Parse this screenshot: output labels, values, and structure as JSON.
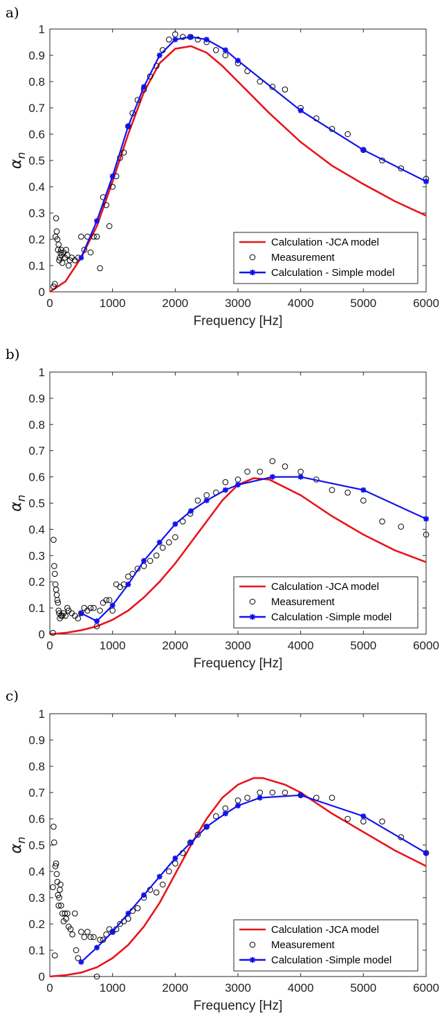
{
  "colors": {
    "jca": "#e8131b",
    "simple": "#1111ee",
    "measurement": "#000000",
    "axis": "#262626"
  },
  "chart_data": [
    {
      "label": "a)",
      "type": "line",
      "xlabel": "Frequency [Hz]",
      "ylabel_symbol": "α",
      "ylabel_sub": "n",
      "xlim": [
        0,
        6000
      ],
      "ylim": [
        0,
        1
      ],
      "xticks": [
        "0",
        "1000",
        "2000",
        "3000",
        "4000",
        "5000",
        "6000"
      ],
      "yticks": [
        "0",
        "0.1",
        "0.2",
        "0.3",
        "0.4",
        "0.5",
        "0.6",
        "0.7",
        "0.8",
        "0.9",
        "1"
      ],
      "legend_position": "bottom-right",
      "series": [
        {
          "name": "Calculation -JCA model",
          "kind": "line",
          "color": "#e8131b",
          "x": [
            0,
            250,
            500,
            750,
            1000,
            1250,
            1500,
            1750,
            2000,
            2250,
            2500,
            2750,
            3000,
            3500,
            4000,
            4500,
            5000,
            5500,
            6000
          ],
          "y": [
            0,
            0.04,
            0.13,
            0.25,
            0.42,
            0.6,
            0.76,
            0.87,
            0.925,
            0.935,
            0.91,
            0.86,
            0.8,
            0.68,
            0.57,
            0.48,
            0.41,
            0.345,
            0.29
          ]
        },
        {
          "name": "Measurement",
          "kind": "scatter",
          "color": "#000000",
          "x": [
            60,
            80,
            90,
            100,
            110,
            120,
            130,
            140,
            150,
            160,
            170,
            180,
            190,
            200,
            220,
            240,
            260,
            280,
            300,
            320,
            350,
            400,
            450,
            500,
            550,
            600,
            650,
            700,
            750,
            800,
            850,
            900,
            950,
            1000,
            1060,
            1120,
            1180,
            1250,
            1320,
            1400,
            1500,
            1600,
            1700,
            1800,
            1900,
            2000,
            2120,
            2240,
            2360,
            2500,
            2650,
            2800,
            3000,
            3150,
            3350,
            3550,
            3750,
            4000,
            4250,
            4500,
            4750,
            5000,
            5300,
            5600,
            6000
          ],
          "y": [
            0.02,
            0.03,
            0.21,
            0.28,
            0.23,
            0.2,
            0.16,
            0.18,
            0.12,
            0.13,
            0.15,
            0.16,
            0.14,
            0.11,
            0.15,
            0.13,
            0.16,
            0.14,
            0.1,
            0.12,
            0.13,
            0.12,
            0.13,
            0.21,
            0.16,
            0.21,
            0.15,
            0.21,
            0.21,
            0.09,
            0.36,
            0.33,
            0.25,
            0.4,
            0.44,
            0.51,
            0.53,
            0.63,
            0.68,
            0.73,
            0.77,
            0.82,
            0.86,
            0.92,
            0.96,
            0.98,
            0.97,
            0.97,
            0.96,
            0.95,
            0.92,
            0.9,
            0.87,
            0.84,
            0.8,
            0.78,
            0.77,
            0.7,
            0.66,
            0.62,
            0.6,
            0.54,
            0.5,
            0.47,
            0.43
          ]
        },
        {
          "name": "Calculation - Simple model",
          "kind": "line-marker",
          "color": "#1111ee",
          "x": [
            500,
            750,
            1000,
            1250,
            1500,
            1750,
            2000,
            2250,
            2500,
            2800,
            3000,
            4000,
            5000,
            6000
          ],
          "y": [
            0.13,
            0.27,
            0.44,
            0.63,
            0.78,
            0.9,
            0.96,
            0.97,
            0.96,
            0.92,
            0.88,
            0.69,
            0.54,
            0.42
          ]
        }
      ]
    },
    {
      "label": "b)",
      "type": "line",
      "xlabel": "Frequency [Hz]",
      "ylabel_symbol": "α",
      "ylabel_sub": "n",
      "xlim": [
        0,
        6000
      ],
      "ylim": [
        0,
        1
      ],
      "xticks": [
        "0",
        "1000",
        "2000",
        "3000",
        "4000",
        "5000",
        "6000"
      ],
      "yticks": [
        "0",
        "0.1",
        "0.2",
        "0.3",
        "0.4",
        "0.5",
        "0.6",
        "0.7",
        "0.8",
        "0.9",
        "1"
      ],
      "legend_position": "bottom-right",
      "series": [
        {
          "name": "Calculation -JCA model",
          "kind": "line",
          "color": "#e8131b",
          "x": [
            0,
            250,
            500,
            750,
            1000,
            1250,
            1500,
            1750,
            2000,
            2250,
            2500,
            2750,
            3000,
            3250,
            3500,
            4000,
            4500,
            5000,
            5500,
            6000
          ],
          "y": [
            0,
            0.005,
            0.015,
            0.03,
            0.055,
            0.09,
            0.14,
            0.2,
            0.27,
            0.35,
            0.43,
            0.51,
            0.57,
            0.595,
            0.59,
            0.53,
            0.45,
            0.38,
            0.32,
            0.275
          ]
        },
        {
          "name": "Measurement",
          "kind": "scatter",
          "color": "#000000",
          "x": [
            50,
            60,
            70,
            80,
            90,
            100,
            110,
            120,
            130,
            140,
            150,
            160,
            180,
            200,
            220,
            250,
            280,
            300,
            350,
            400,
            450,
            500,
            550,
            600,
            650,
            700,
            750,
            800,
            850,
            900,
            950,
            1000,
            1060,
            1120,
            1180,
            1250,
            1320,
            1400,
            1500,
            1600,
            1700,
            1800,
            1900,
            2000,
            2120,
            2240,
            2360,
            2500,
            2650,
            2800,
            3000,
            3150,
            3350,
            3550,
            3750,
            4000,
            4250,
            4500,
            4750,
            5000,
            5300,
            5600,
            6000
          ],
          "y": [
            0.005,
            0.36,
            0.26,
            0.23,
            0.19,
            0.17,
            0.15,
            0.13,
            0.12,
            0.09,
            0.08,
            0.06,
            0.07,
            0.07,
            0.08,
            0.07,
            0.1,
            0.09,
            0.08,
            0.07,
            0.06,
            0.08,
            0.1,
            0.09,
            0.1,
            0.1,
            0.03,
            0.09,
            0.12,
            0.13,
            0.13,
            0.09,
            0.19,
            0.18,
            0.19,
            0.22,
            0.23,
            0.25,
            0.26,
            0.28,
            0.3,
            0.33,
            0.35,
            0.37,
            0.43,
            0.46,
            0.51,
            0.53,
            0.54,
            0.58,
            0.59,
            0.62,
            0.62,
            0.66,
            0.64,
            0.62,
            0.59,
            0.55,
            0.54,
            0.51,
            0.43,
            0.41,
            0.38
          ]
        },
        {
          "name": "Calculation -Simple model",
          "kind": "line-marker",
          "color": "#1111ee",
          "x": [
            500,
            750,
            1000,
            1250,
            1500,
            1750,
            2000,
            2250,
            2500,
            2800,
            3000,
            3550,
            4000,
            5000,
            6000
          ],
          "y": [
            0.08,
            0.05,
            0.11,
            0.19,
            0.28,
            0.35,
            0.42,
            0.47,
            0.51,
            0.55,
            0.57,
            0.6,
            0.6,
            0.55,
            0.44
          ]
        }
      ]
    },
    {
      "label": "c)",
      "type": "line",
      "xlabel": "Frequency [Hz]",
      "ylabel_symbol": "α",
      "ylabel_sub": "n",
      "xlim": [
        0,
        6000
      ],
      "ylim": [
        0,
        1
      ],
      "xticks": [
        "0",
        "1000",
        "2000",
        "3000",
        "4000",
        "5000",
        "6000"
      ],
      "yticks": [
        "0",
        "0.1",
        "0.2",
        "0.3",
        "0.4",
        "0.5",
        "0.6",
        "0.7",
        "0.8",
        "0.9",
        "1"
      ],
      "legend_position": "bottom-right",
      "series": [
        {
          "name": "Calculation -JCA model",
          "kind": "line",
          "color": "#e8131b",
          "x": [
            0,
            250,
            500,
            750,
            1000,
            1250,
            1500,
            1750,
            2000,
            2250,
            2500,
            2750,
            3000,
            3250,
            3400,
            3750,
            4000,
            4500,
            5000,
            5500,
            6000
          ],
          "y": [
            0,
            0.005,
            0.015,
            0.035,
            0.07,
            0.12,
            0.19,
            0.28,
            0.39,
            0.5,
            0.6,
            0.68,
            0.73,
            0.755,
            0.755,
            0.73,
            0.7,
            0.62,
            0.55,
            0.48,
            0.42
          ]
        },
        {
          "name": "Measurement",
          "kind": "scatter",
          "color": "#000000",
          "x": [
            50,
            60,
            70,
            80,
            90,
            100,
            110,
            120,
            130,
            140,
            150,
            160,
            170,
            180,
            200,
            220,
            240,
            260,
            280,
            300,
            330,
            360,
            400,
            420,
            450,
            500,
            550,
            600,
            650,
            700,
            750,
            800,
            850,
            900,
            950,
            1000,
            1060,
            1120,
            1180,
            1250,
            1320,
            1400,
            1500,
            1600,
            1700,
            1800,
            1900,
            2000,
            2120,
            2240,
            2360,
            2500,
            2650,
            2800,
            3000,
            3150,
            3350,
            3550,
            3750,
            4000,
            4250,
            4500,
            4750,
            5000,
            5300,
            5600,
            6000
          ],
          "y": [
            0.34,
            0.57,
            0.51,
            0.08,
            0.42,
            0.43,
            0.39,
            0.36,
            0.31,
            0.27,
            0.3,
            0.33,
            0.35,
            0.27,
            0.24,
            0.21,
            0.24,
            0.22,
            0.24,
            0.19,
            0.18,
            0.16,
            0.24,
            0.1,
            0.07,
            0.17,
            0.15,
            0.17,
            0.15,
            0.15,
            0.0,
            0.14,
            0.14,
            0.16,
            0.18,
            0.17,
            0.18,
            0.2,
            0.21,
            0.22,
            0.25,
            0.26,
            0.3,
            0.33,
            0.32,
            0.35,
            0.4,
            0.43,
            0.47,
            0.51,
            0.54,
            0.57,
            0.61,
            0.64,
            0.67,
            0.68,
            0.7,
            0.7,
            0.7,
            0.69,
            0.68,
            0.68,
            0.6,
            0.59,
            0.59,
            0.53,
            0.47
          ]
        },
        {
          "name": "Calculation -Simple model",
          "kind": "line-marker",
          "color": "#1111ee",
          "x": [
            500,
            750,
            1000,
            1250,
            1500,
            1750,
            2000,
            2250,
            2500,
            2800,
            3000,
            3350,
            4000,
            5000,
            6000
          ],
          "y": [
            0.055,
            0.11,
            0.17,
            0.24,
            0.31,
            0.38,
            0.45,
            0.51,
            0.57,
            0.62,
            0.65,
            0.68,
            0.69,
            0.61,
            0.47
          ]
        }
      ]
    }
  ]
}
